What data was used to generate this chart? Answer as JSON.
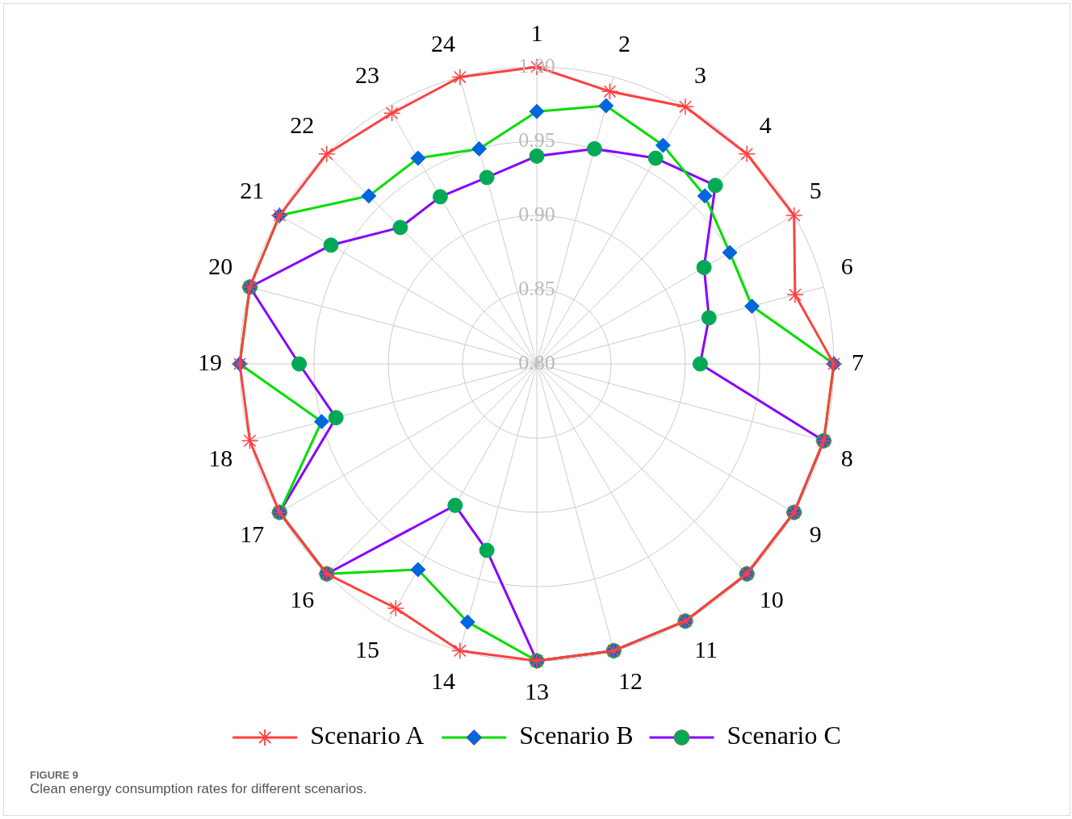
{
  "chart_data": {
    "type": "radar",
    "categories": [
      "1",
      "2",
      "3",
      "4",
      "5",
      "6",
      "7",
      "8",
      "9",
      "10",
      "11",
      "12",
      "13",
      "14",
      "15",
      "16",
      "17",
      "18",
      "19",
      "20",
      "21",
      "22",
      "23",
      "24"
    ],
    "ylim": [
      0.8,
      1.0
    ],
    "yticks": [
      {
        "value": 0.8,
        "label": "0.80"
      },
      {
        "value": 0.85,
        "label": "0.85"
      },
      {
        "value": 0.9,
        "label": "0.90"
      },
      {
        "value": 0.95,
        "label": "0.95"
      },
      {
        "value": 1.0,
        "label": "1.00"
      }
    ],
    "grid": true,
    "legend": "bottom",
    "line_style": "solid",
    "series": [
      {
        "name": "Scenario A",
        "color": "#ff4040",
        "marker": "star",
        "values": [
          1.0,
          0.99,
          1.0,
          1.0,
          1.0,
          0.98,
          1.0,
          1.0,
          1.0,
          1.0,
          1.0,
          1.0,
          1.0,
          1.0,
          0.99,
          1.0,
          1.0,
          1.0,
          1.0,
          1.0,
          1.0,
          1.0,
          0.995,
          1.0
        ]
      },
      {
        "name": "Scenario B",
        "color": "#00dd00",
        "colors": [
          "#0066dd",
          "#0066dd",
          "#0066dd",
          "#0066dd",
          "#0066dd",
          "#0066dd",
          "#0066dd",
          "#0066dd",
          "#0066dd",
          "#0066dd",
          "#0066dd",
          "#0066dd",
          "#0066dd",
          "#0066dd",
          "#0066dd",
          "#0066dd",
          "#0066dd",
          "#0066dd",
          "#0066dd",
          "#0066dd",
          "#0066dd",
          "#0066dd",
          "#0066dd",
          "#0066dd"
        ],
        "marker": "diamond",
        "values": [
          0.97,
          0.98,
          0.97,
          0.96,
          0.95,
          0.95,
          1.0,
          1.0,
          1.0,
          1.0,
          1.0,
          1.0,
          1.0,
          0.98,
          0.96,
          1.0,
          1.0,
          0.95,
          1.0,
          1.0,
          1.0,
          0.96,
          0.96,
          0.95
        ]
      },
      {
        "name": "Scenario C",
        "color": "#8800ff",
        "colors": [
          "#00aa55",
          "#00aa55",
          "#00aa55",
          "#00aa55",
          "#00aa55",
          "#00aa55",
          "#00aa55",
          "#00aa55",
          "#00aa55",
          "#00aa55",
          "#00aa55",
          "#00aa55",
          "#00aa55",
          "#00aa55",
          "#00aa55",
          "#00aa55",
          "#00aa55",
          "#00aa55",
          "#00aa55",
          "#00aa55",
          "#00aa55",
          "#00aa55",
          "#00aa55",
          "#00aa55"
        ],
        "marker": "circle",
        "values": [
          0.94,
          0.95,
          0.96,
          0.97,
          0.93,
          0.92,
          0.91,
          1.0,
          1.0,
          1.0,
          1.0,
          1.0,
          1.0,
          0.93,
          0.91,
          1.0,
          1.0,
          0.94,
          0.96,
          1.0,
          0.96,
          0.93,
          0.93,
          0.93
        ]
      }
    ],
    "annotations": [
      "FIGURE 9",
      "Clean energy consumption rates for different scenarios."
    ]
  }
}
